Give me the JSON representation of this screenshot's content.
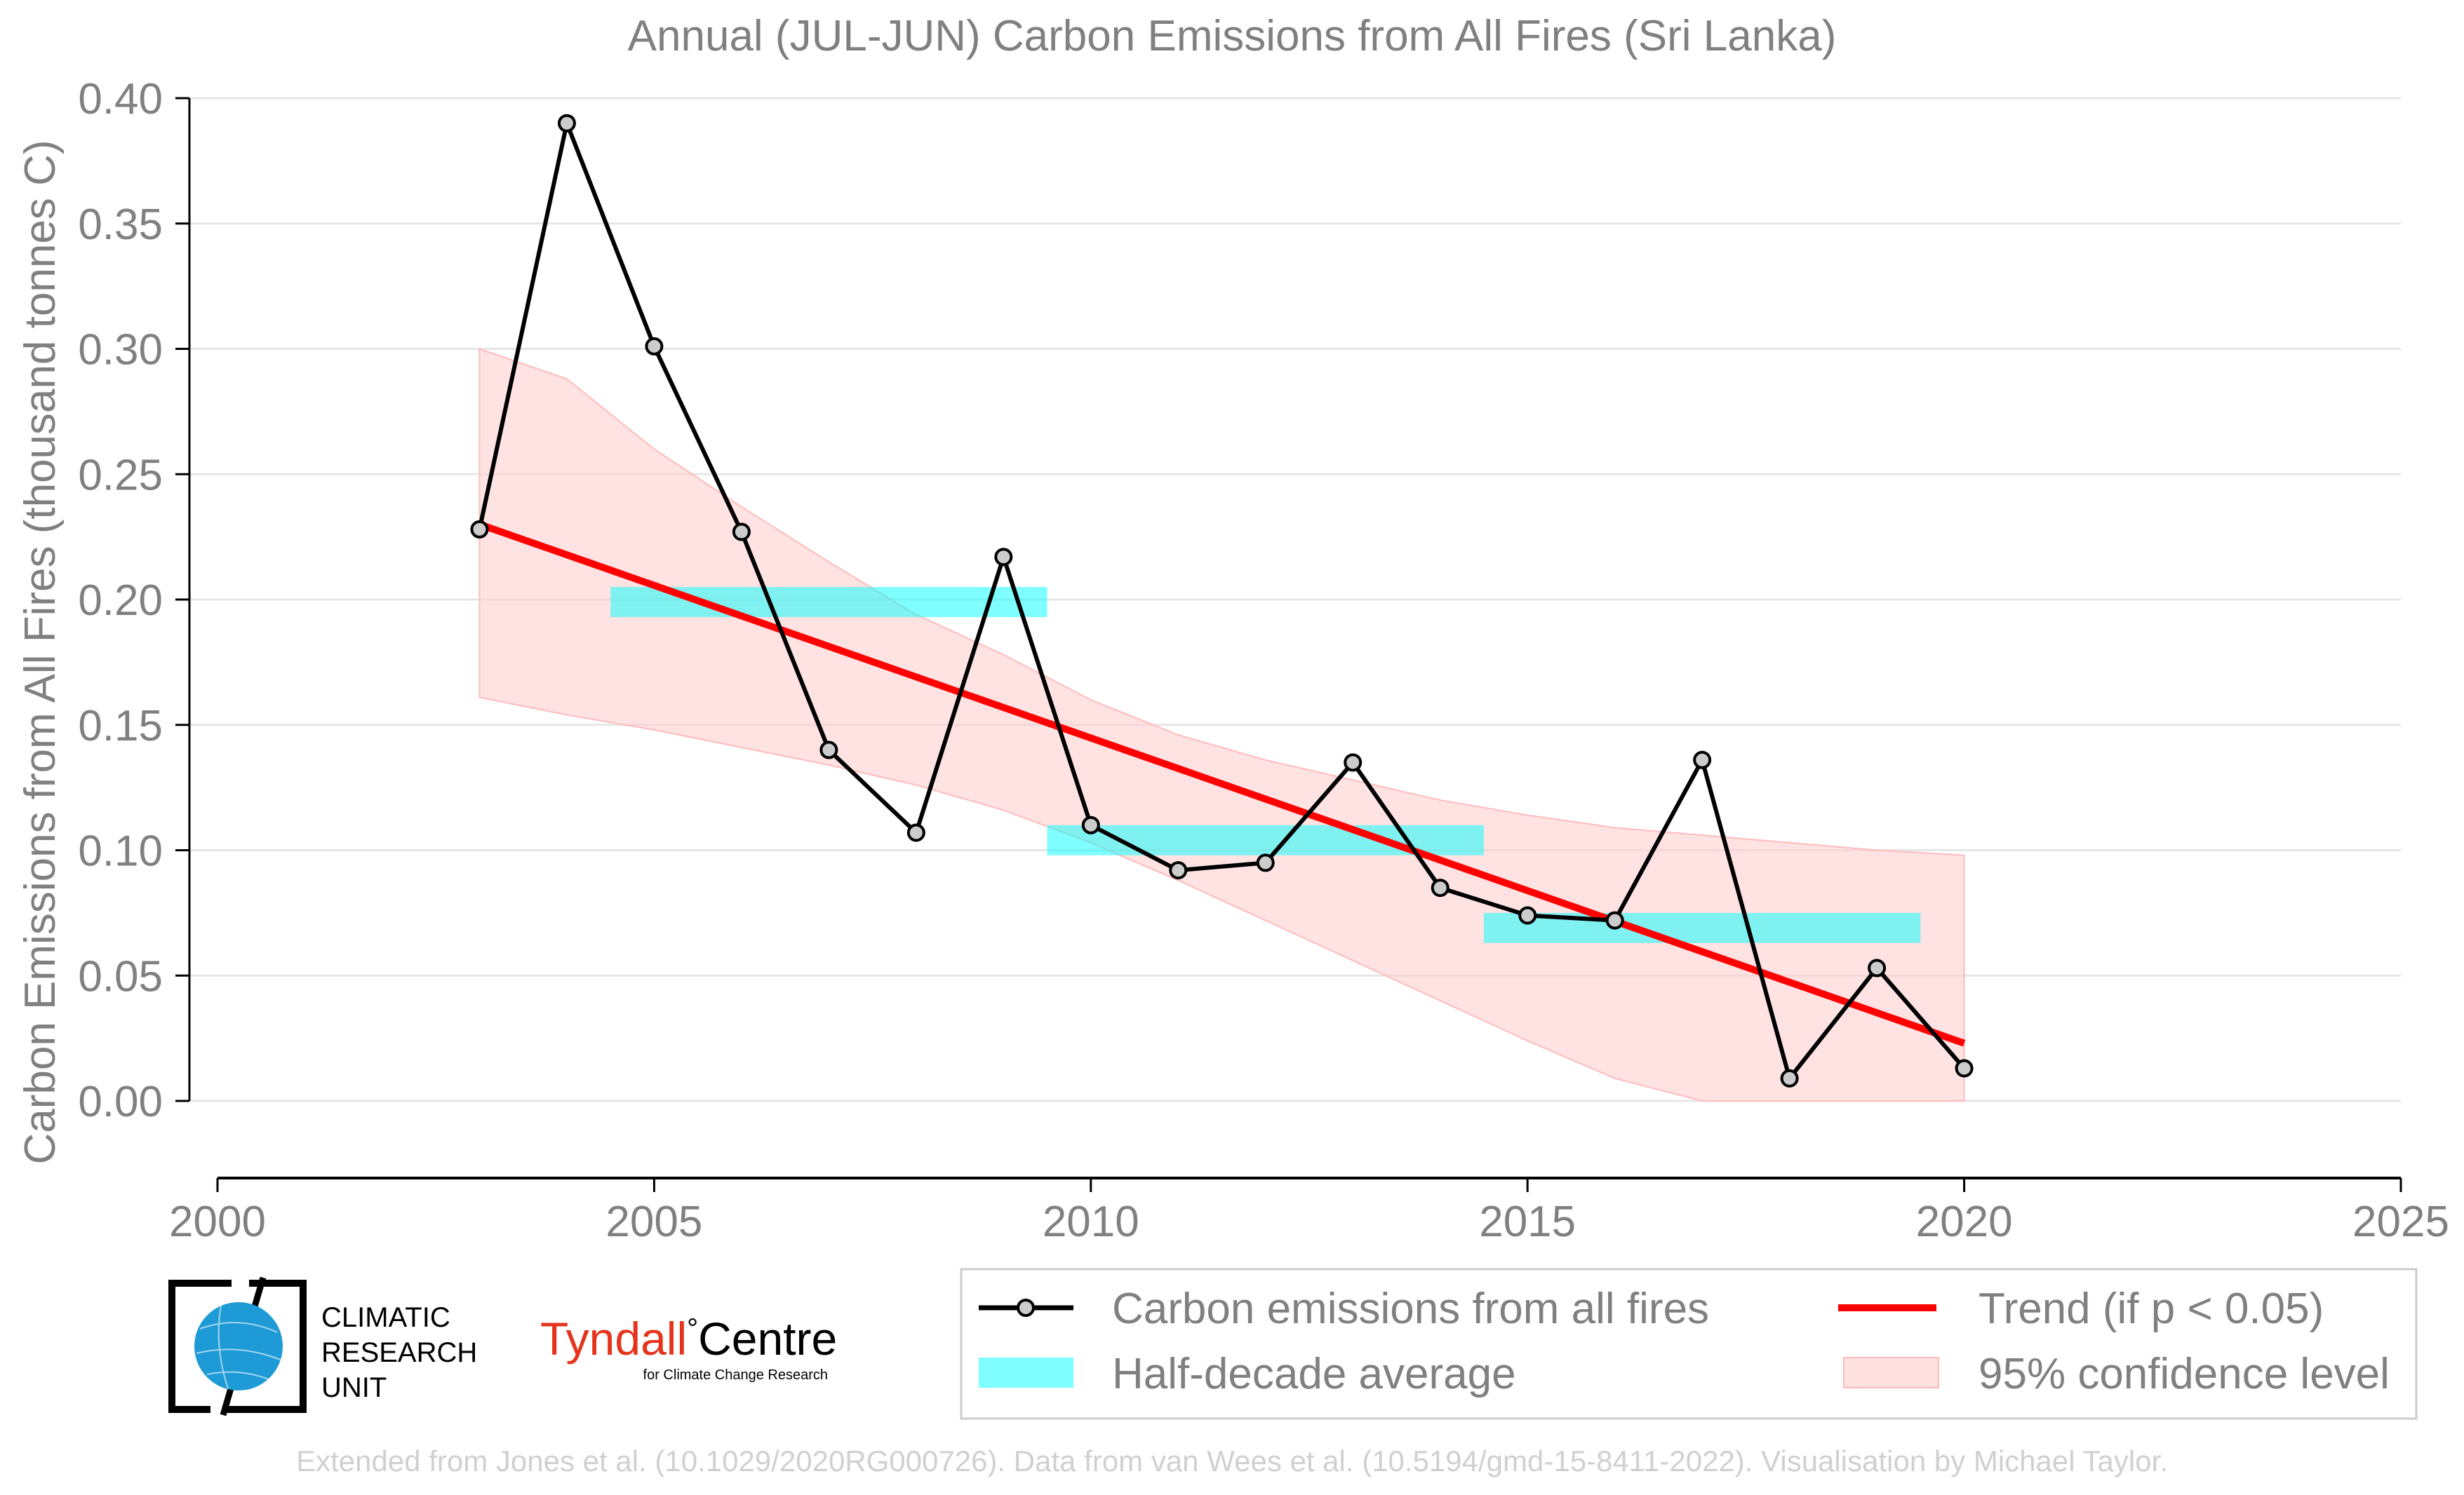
{
  "chart_data": {
    "type": "line",
    "title": "Annual (JUL-JUN) Carbon Emissions from All Fires (Sri Lanka)",
    "xlabel": "",
    "ylabel": "Carbon Emissions from All Fires (thousand tonnes C)",
    "xlim": [
      2000,
      2025
    ],
    "ylim": [
      0,
      0.4
    ],
    "x_ticks": [
      2000,
      2005,
      2010,
      2015,
      2020,
      2025
    ],
    "y_ticks": [
      0.0,
      0.05,
      0.1,
      0.15,
      0.2,
      0.25,
      0.3,
      0.35,
      0.4
    ],
    "x_tick_labels": [
      "2000",
      "2005",
      "2010",
      "2015",
      "2020",
      "2025"
    ],
    "y_tick_labels": [
      "0.00",
      "0.05",
      "0.10",
      "0.15",
      "0.20",
      "0.25",
      "0.30",
      "0.35",
      "0.40"
    ],
    "grid": "horizontal",
    "legend_position": "bottom",
    "series": [
      {
        "name": "Carbon emissions from all fires",
        "kind": "line-markers",
        "color": "#000000",
        "marker_fill": "#cccccc",
        "x": [
          2003,
          2004,
          2005,
          2006,
          2007,
          2008,
          2009,
          2010,
          2011,
          2012,
          2013,
          2014,
          2015,
          2016,
          2017,
          2018,
          2019,
          2020
        ],
        "y": [
          0.228,
          0.39,
          0.301,
          0.227,
          0.14,
          0.107,
          0.217,
          0.11,
          0.092,
          0.095,
          0.135,
          0.085,
          0.074,
          0.072,
          0.136,
          0.009,
          0.053,
          0.013
        ]
      },
      {
        "name": "Half-decade average",
        "kind": "bars",
        "color": "#00ffff",
        "segments": [
          {
            "x0": 2004.5,
            "x1": 2009.5,
            "y": 0.199
          },
          {
            "x0": 2009.5,
            "x1": 2014.5,
            "y": 0.104
          },
          {
            "x0": 2014.5,
            "x1": 2019.5,
            "y": 0.069
          }
        ],
        "thickness": 0.012
      },
      {
        "name": "Trend (if p < 0.05)",
        "kind": "line",
        "color": "#ff0000",
        "x": [
          2003,
          2020
        ],
        "y": [
          0.23,
          0.023
        ]
      },
      {
        "name": "95% confidence level",
        "kind": "band",
        "color": "#ffcccc",
        "x": [
          2003,
          2004,
          2005,
          2006,
          2007,
          2008,
          2009,
          2010,
          2011,
          2012,
          2013,
          2014,
          2015,
          2016,
          2017,
          2018,
          2019,
          2020
        ],
        "lower": [
          0.161,
          0.154,
          0.148,
          0.141,
          0.134,
          0.126,
          0.116,
          0.103,
          0.088,
          0.072,
          0.056,
          0.04,
          0.024,
          0.009,
          0.0,
          0.0,
          0.0,
          0.0
        ],
        "upper": [
          0.3,
          0.288,
          0.26,
          0.237,
          0.215,
          0.194,
          0.178,
          0.16,
          0.146,
          0.136,
          0.128,
          0.12,
          0.114,
          0.109,
          0.106,
          0.103,
          0.1,
          0.098
        ]
      }
    ]
  },
  "legend": {
    "items": [
      "Carbon emissions from all fires",
      "Half-decade average",
      "Trend (if p < 0.05)",
      "95% confidence level"
    ]
  },
  "logos": {
    "cru": [
      "CLIMATIC",
      "RESEARCH",
      "UNIT"
    ],
    "tyndall_name": "Tyndall",
    "tyndall_degree": "°",
    "tyndall_centre": "Centre",
    "tyndall_sub": "for Climate Change Research"
  },
  "credit": "Extended from Jones et al. (10.1029/2020RG000726). Data from van Wees et al. (10.5194/gmd-15-8411-2022). Visualisation by Michael Taylor."
}
